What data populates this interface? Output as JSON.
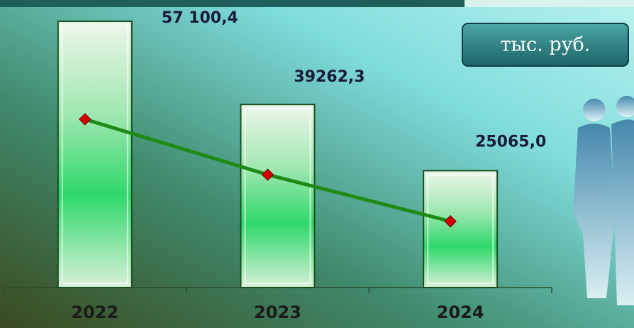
{
  "chart_data": {
    "type": "bar",
    "unit_label": "тыс. руб.",
    "categories": [
      "2022",
      "2023",
      "2024"
    ],
    "ylim": [
      0,
      60000
    ],
    "series": [
      {
        "type": "bar",
        "color": "#2fd86a",
        "values": [
          57100.4,
          39262.3,
          25065.0
        ],
        "value_labels": [
          "57 100,4",
          "39262,3",
          "25065,0"
        ]
      },
      {
        "type": "line",
        "color": "#1f8a14",
        "marker_color": "#d40000",
        "values": [
          36100,
          24200,
          14200
        ]
      }
    ]
  }
}
